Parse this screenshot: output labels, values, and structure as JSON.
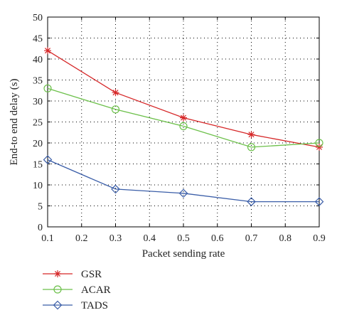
{
  "chart_data": {
    "type": "line",
    "xlabel": "Packet sending rate",
    "ylabel": "End-to end delay (s)",
    "xlim": [
      0.1,
      0.9
    ],
    "ylim": [
      0,
      50
    ],
    "xticks": [
      "0.1",
      "0.2",
      "0.3",
      "0.4",
      "0.5",
      "0.6",
      "0.7",
      "0.8",
      "0.9"
    ],
    "yticks": [
      "0",
      "5",
      "10",
      "15",
      "20",
      "25",
      "30",
      "35",
      "40",
      "45",
      "50"
    ],
    "grid": true,
    "legend_position": "below-left",
    "x": [
      0.1,
      0.3,
      0.5,
      0.7,
      0.9
    ],
    "series": [
      {
        "name": "GSR",
        "values": [
          42,
          32,
          26,
          22,
          19
        ],
        "color": "#d62728",
        "marker": "asterisk"
      },
      {
        "name": "ACAR",
        "values": [
          33,
          28,
          24,
          19,
          20
        ],
        "color": "#6cc04a",
        "marker": "circle"
      },
      {
        "name": "TADS",
        "values": [
          16,
          9,
          8,
          6,
          6
        ],
        "color": "#3b5ea8",
        "marker": "diamond"
      }
    ]
  }
}
